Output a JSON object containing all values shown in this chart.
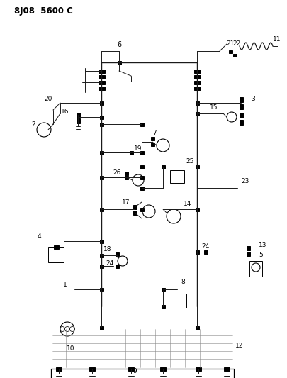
{
  "title": "8J08  5600 C",
  "bg_color": "#ffffff",
  "line_color": "#1a1a1a",
  "fig_width": 4.05,
  "fig_height": 5.33,
  "dpi": 100
}
